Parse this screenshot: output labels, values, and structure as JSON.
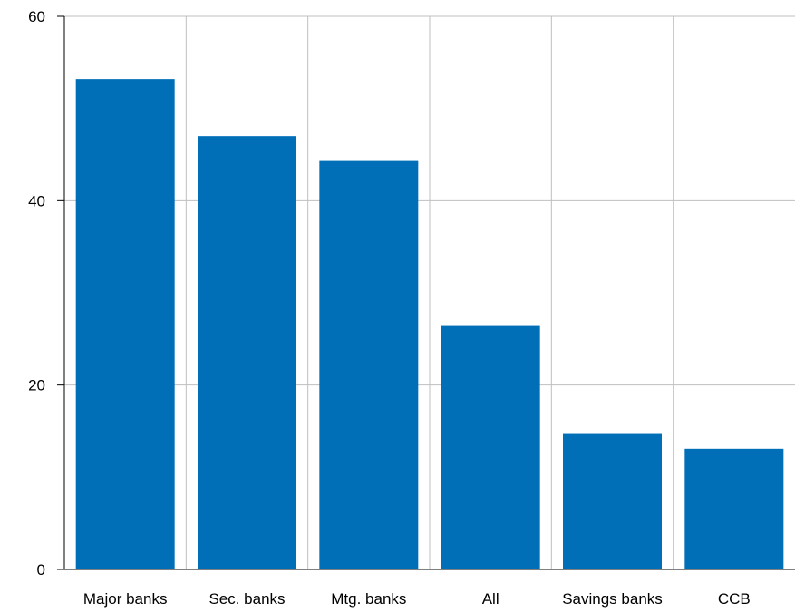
{
  "chart_data": {
    "type": "bar",
    "categories": [
      "Major banks",
      "Sec. banks",
      "Mtg. banks",
      "All",
      "Savings banks",
      "CCB"
    ],
    "values": [
      53.2,
      47.0,
      44.4,
      26.5,
      14.7,
      13.1
    ],
    "ylim": [
      0,
      60
    ],
    "yticks": [
      0,
      20,
      40,
      60
    ],
    "grid": true,
    "legend": "none",
    "bar_color": "#006FB8",
    "grid_color": "#bfbfbf",
    "axis_color": "#000000"
  }
}
